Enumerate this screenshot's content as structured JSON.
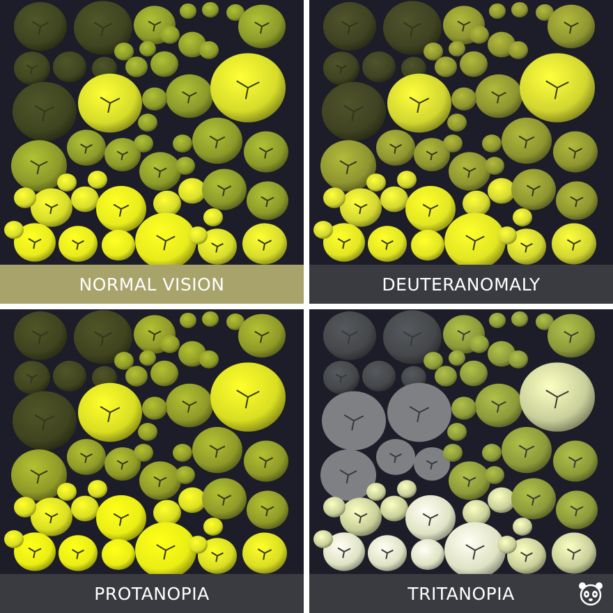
{
  "panels": [
    {
      "label": "NORMAL VISION",
      "caption_color": "#a7a36b",
      "palette": {
        "dark": "#3f4520",
        "mid": "#8c9a2a",
        "light": "#d6dc2a",
        "bright": "#e8ec1c"
      }
    },
    {
      "label": "DEUTERANOMALY",
      "caption_color": "#3a3b40",
      "palette": {
        "dark": "#3f4322",
        "mid": "#8e9530",
        "light": "#d2d630",
        "bright": "#e2e622"
      }
    },
    {
      "label": "PROTANOPIA",
      "caption_color": "#3a3b40",
      "palette": {
        "dark": "#40441f",
        "mid": "#8f9a28",
        "light": "#d9de22",
        "bright": "#eaee14"
      }
    },
    {
      "label": "TRITANOPIA",
      "caption_color": "#3a3b40",
      "palette": {
        "dark": "#45474a",
        "mid": "#8d9a3a",
        "light": "#c9cf9a",
        "bright": "#dfe3c4"
      }
    }
  ],
  "background_color": "#1c1d28",
  "logo_icon": "panda-logo-icon"
}
